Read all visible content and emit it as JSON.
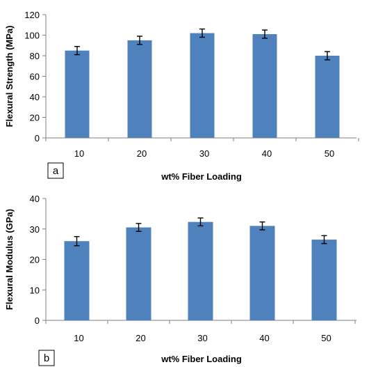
{
  "chart_data": [
    {
      "type": "bar",
      "panel_label": "a",
      "categories": [
        "10",
        "20",
        "30",
        "40",
        "50"
      ],
      "values": [
        85,
        95,
        102,
        101,
        80
      ],
      "error": [
        4,
        4,
        4,
        4,
        4
      ],
      "xlabel": "wt% Fiber Loading",
      "ylabel": "Flexural Strength (MPa)",
      "ylim": [
        0,
        120
      ],
      "yticks": [
        "0",
        "20",
        "40",
        "60",
        "80",
        "100",
        "120"
      ],
      "grid": false,
      "bar_color": "#4f81bd"
    },
    {
      "type": "bar",
      "panel_label": "b",
      "categories": [
        "10",
        "20",
        "30",
        "40",
        "50"
      ],
      "values": [
        26,
        30.5,
        32.3,
        31,
        26.5
      ],
      "error": [
        1.5,
        1.3,
        1.3,
        1.3,
        1.3
      ],
      "xlabel": "wt% Fiber  Loading",
      "ylabel": "Flexural Modulus (GPa)",
      "ylim": [
        0,
        40
      ],
      "yticks": [
        "0",
        "10",
        "20",
        "30",
        "40"
      ],
      "grid": false,
      "bar_color": "#4f81bd"
    }
  ]
}
